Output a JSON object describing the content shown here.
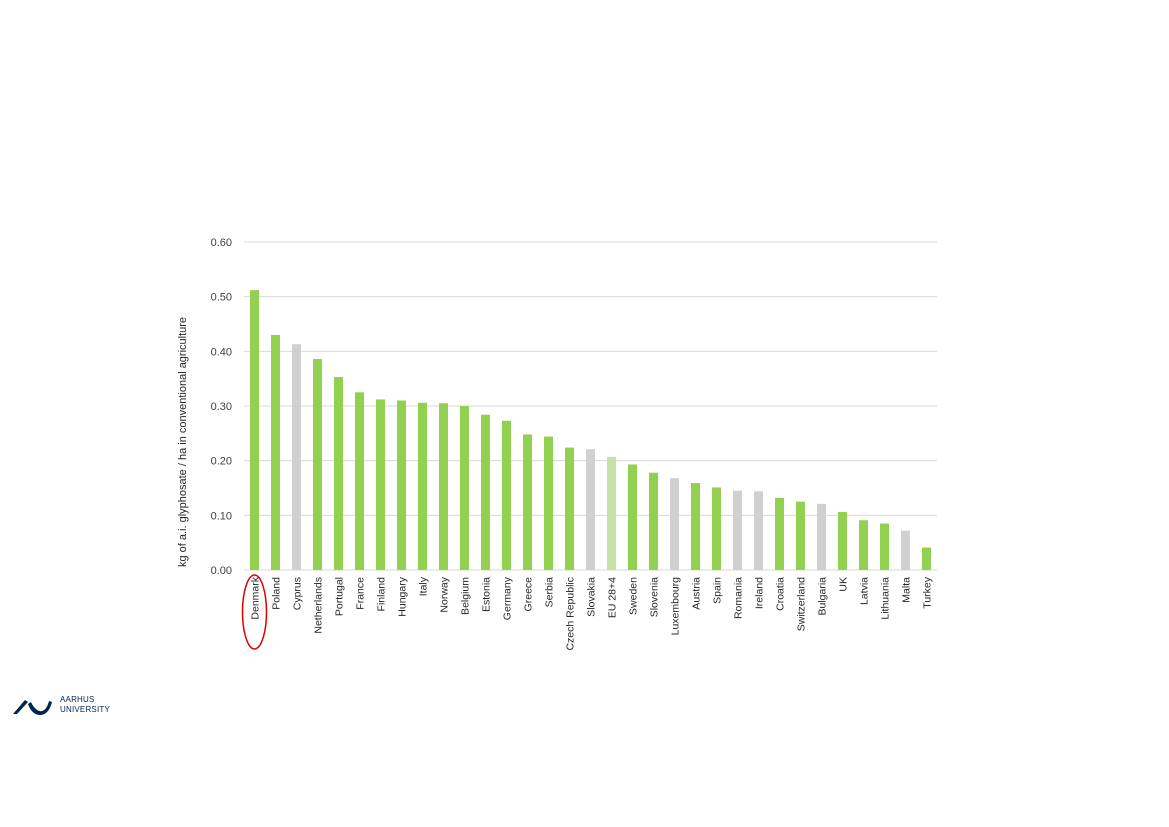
{
  "chart_data": {
    "type": "bar",
    "title": "",
    "xlabel": "",
    "ylabel": "kg of a.i. glyphosate / ha in conventional agriculture",
    "ylim": [
      0,
      0.6
    ],
    "yticks": [
      "0.00",
      "0.10",
      "0.20",
      "0.30",
      "0.40",
      "0.50",
      "0.60"
    ],
    "grid": true,
    "categories": [
      "Denmark",
      "Poland",
      "Cyprus",
      "Netherlands",
      "Portugal",
      "France",
      "Finland",
      "Hungary",
      "Italy",
      "Norway",
      "Belgium",
      "Estonia",
      "Germany",
      "Greece",
      "Serbia",
      "Czech Republic",
      "Slovakia",
      "EU 28+4",
      "Sweden",
      "Slovenia",
      "Luxembourg",
      "Austria",
      "Spain",
      "Romania",
      "Ireland",
      "Croatia",
      "Switzerland",
      "Bulgaria",
      "UK",
      "Latvia",
      "Lithuania",
      "Malta",
      "Turkey"
    ],
    "values": [
      0.512,
      0.43,
      0.413,
      0.386,
      0.353,
      0.325,
      0.312,
      0.31,
      0.306,
      0.305,
      0.3,
      0.284,
      0.273,
      0.248,
      0.244,
      0.224,
      0.221,
      0.207,
      0.193,
      0.178,
      0.168,
      0.159,
      0.151,
      0.145,
      0.144,
      0.132,
      0.125,
      0.121,
      0.106,
      0.091,
      0.085,
      0.072,
      0.041
    ],
    "bar_color_groups": [
      "green",
      "green",
      "gray",
      "green",
      "green",
      "green",
      "green",
      "green",
      "green",
      "green",
      "green",
      "green",
      "green",
      "green",
      "green",
      "green",
      "gray",
      "light-green",
      "green",
      "green",
      "gray",
      "green",
      "green",
      "gray",
      "gray",
      "green",
      "green",
      "gray",
      "green",
      "green",
      "green",
      "gray",
      "green"
    ],
    "highlighted_category": "Denmark"
  },
  "colors": {
    "green": "#92d050",
    "gray": "#d0d0d0",
    "light-green": "#c5e3a8",
    "grid": "#d9d9d9",
    "highlight": "#e00000"
  },
  "logo": {
    "line1": "AARHUS",
    "line2": "UNIVERSITY"
  }
}
